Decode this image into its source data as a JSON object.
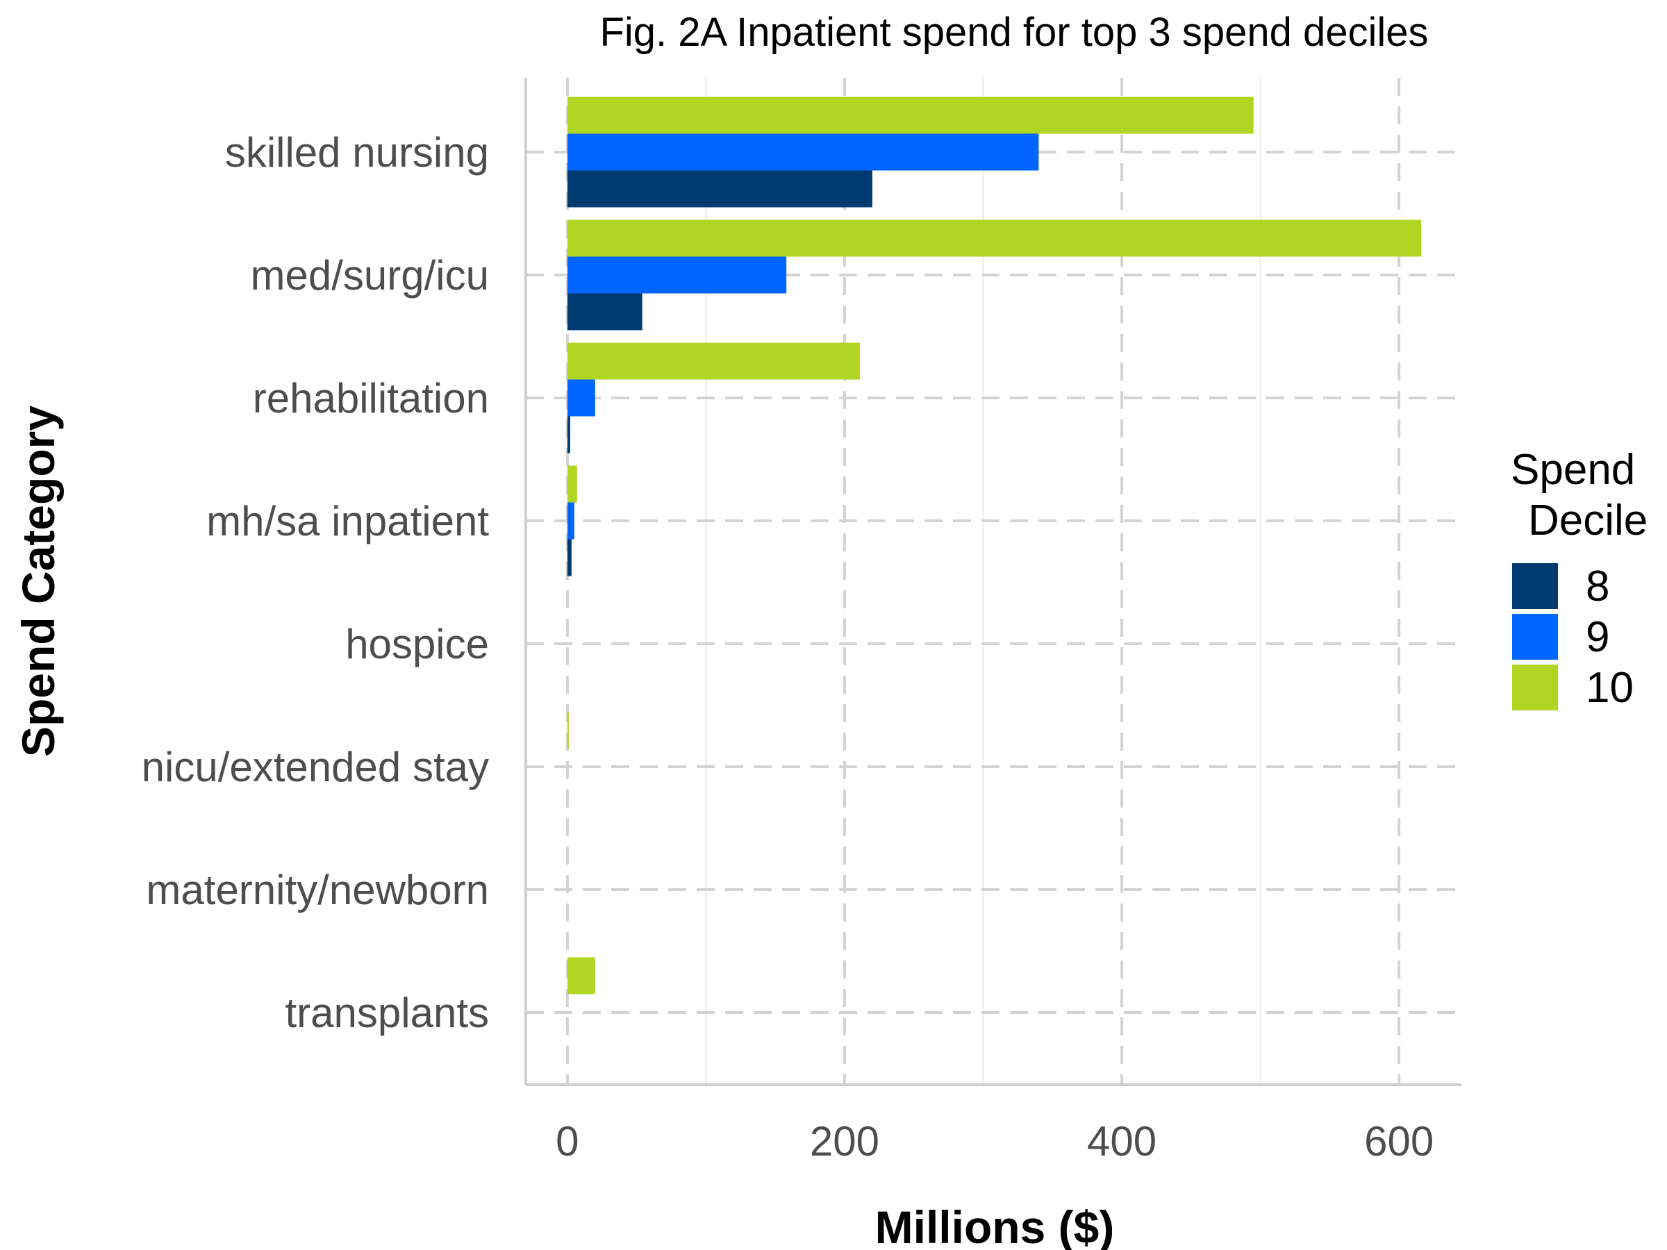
{
  "chart_data": {
    "type": "bar",
    "orientation": "horizontal",
    "title": "Fig. 2A Inpatient spend for top 3 spend deciles",
    "xlabel": "Millions ($)",
    "ylabel": "Spend Category",
    "categories": [
      "skilled nursing",
      "med/surg/icu",
      "rehabilitation",
      "mh/sa inpatient",
      "hospice",
      "nicu/extended stay",
      "maternity/newborn",
      "transplants"
    ],
    "series": [
      {
        "name": "8",
        "color": "#003a70",
        "values": [
          220,
          54,
          2,
          3,
          0,
          0,
          0,
          0
        ]
      },
      {
        "name": "9",
        "color": "#0066ff",
        "values": [
          340,
          158,
          20,
          5,
          0,
          0,
          0,
          0
        ]
      },
      {
        "name": "10",
        "color": "#b0d523",
        "values": [
          495,
          616,
          211,
          7,
          0,
          1,
          0,
          20
        ]
      }
    ],
    "xlim": [
      -30,
      645
    ],
    "xticks": [
      "0",
      "200",
      "400",
      "600"
    ],
    "xtick_values": [
      0,
      200,
      400,
      600
    ],
    "grid": true,
    "legend": {
      "title_line1": "Spend",
      "title_line2": "Decile",
      "position": "right"
    }
  }
}
